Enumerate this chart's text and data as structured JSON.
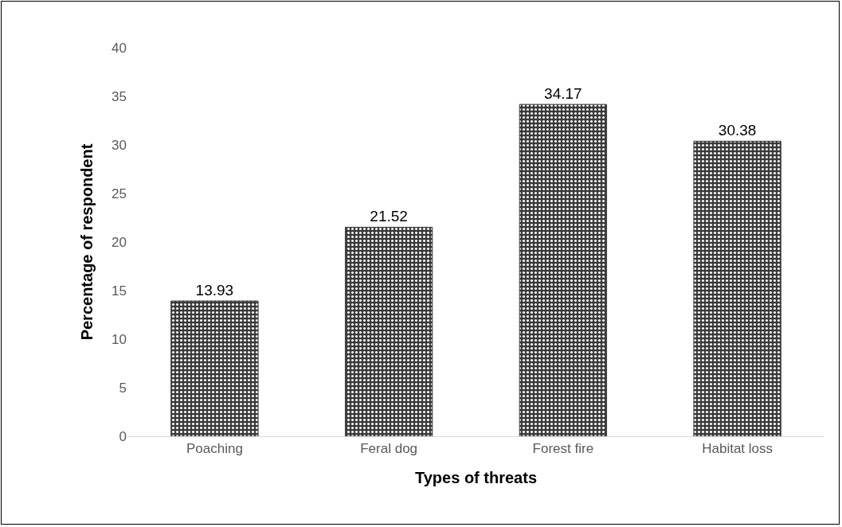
{
  "chart_data": {
    "type": "bar",
    "xlabel": "Types of threats",
    "ylabel": "Percentage of respondent",
    "categories": [
      "Poaching",
      "Feral dog",
      "Forest fire",
      "Habitat loss"
    ],
    "values": [
      13.93,
      21.52,
      34.17,
      30.38
    ],
    "color": "#3a3a3a",
    "ylim": [
      0,
      40
    ],
    "yticks": [
      0,
      5,
      10,
      15,
      20,
      25,
      30,
      35,
      40
    ],
    "grid": false,
    "legend": false,
    "data_labels": true
  }
}
